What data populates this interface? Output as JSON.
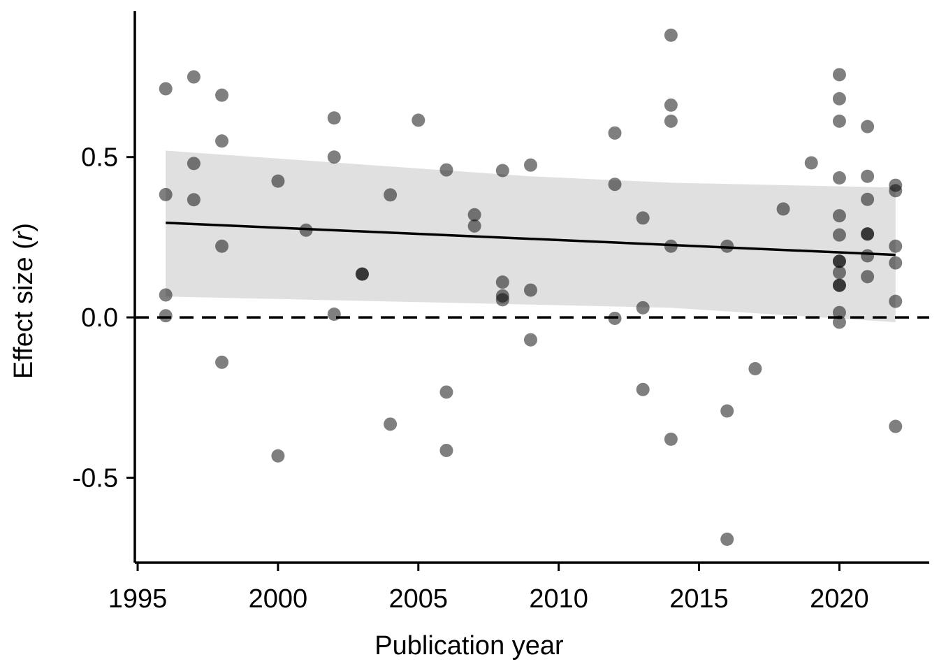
{
  "chart_data": {
    "type": "scatter",
    "title": "",
    "xlabel": "Publication year",
    "ylabel_prefix": "Effect size (",
    "ylabel_symbol": "r",
    "ylabel_suffix": ")",
    "xlim": [
      1994.9,
      2023.2
    ],
    "ylim": [
      -0.765,
      0.955
    ],
    "x_ticks": [
      1995,
      2000,
      2005,
      2010,
      2015,
      2020
    ],
    "x_tick_labels": [
      "1995",
      "2000",
      "2005",
      "2010",
      "2015",
      "2020"
    ],
    "y_ticks": [
      -0.5,
      0.0,
      0.5
    ],
    "y_tick_labels": [
      "-0.5",
      "0.0",
      "0.5"
    ],
    "reference_line_y": 0.0,
    "grid": false,
    "trend": {
      "x": [
        1996,
        2022
      ],
      "y": [
        0.295,
        0.195
      ]
    },
    "confidence_band": {
      "x": [
        1996,
        2009,
        2014,
        2022
      ],
      "upper": [
        0.52,
        0.44,
        0.42,
        0.405
      ],
      "lower": [
        0.065,
        0.04,
        0.03,
        -0.015
      ]
    },
    "points": [
      {
        "x": 1996,
        "y": 0.713
      },
      {
        "x": 1996,
        "y": 0.383
      },
      {
        "x": 1996,
        "y": 0.07
      },
      {
        "x": 1996,
        "y": 0.005
      },
      {
        "x": 1997,
        "y": 0.75
      },
      {
        "x": 1997,
        "y": 0.48
      },
      {
        "x": 1997,
        "y": 0.367
      },
      {
        "x": 1998,
        "y": 0.693
      },
      {
        "x": 1998,
        "y": 0.55
      },
      {
        "x": 1998,
        "y": 0.222
      },
      {
        "x": 1998,
        "y": -0.14
      },
      {
        "x": 2000,
        "y": 0.425
      },
      {
        "x": 2000,
        "y": -0.432
      },
      {
        "x": 2001,
        "y": 0.272
      },
      {
        "x": 2002,
        "y": 0.622
      },
      {
        "x": 2002,
        "y": 0.5
      },
      {
        "x": 2002,
        "y": 0.01
      },
      {
        "x": 2003,
        "y": 0.135
      },
      {
        "x": 2003,
        "y": 0.135
      },
      {
        "x": 2004,
        "y": 0.382
      },
      {
        "x": 2004,
        "y": -0.333
      },
      {
        "x": 2005,
        "y": 0.615
      },
      {
        "x": 2006,
        "y": 0.46
      },
      {
        "x": 2006,
        "y": -0.233
      },
      {
        "x": 2006,
        "y": -0.415
      },
      {
        "x": 2007,
        "y": 0.32
      },
      {
        "x": 2007,
        "y": 0.285
      },
      {
        "x": 2008,
        "y": 0.458
      },
      {
        "x": 2008,
        "y": 0.11
      },
      {
        "x": 2008,
        "y": 0.067
      },
      {
        "x": 2008,
        "y": 0.055
      },
      {
        "x": 2009,
        "y": 0.475
      },
      {
        "x": 2009,
        "y": 0.085
      },
      {
        "x": 2009,
        "y": -0.07
      },
      {
        "x": 2012,
        "y": 0.575
      },
      {
        "x": 2012,
        "y": 0.415
      },
      {
        "x": 2012,
        "y": -0.003
      },
      {
        "x": 2013,
        "y": 0.31
      },
      {
        "x": 2013,
        "y": 0.03
      },
      {
        "x": 2013,
        "y": -0.225
      },
      {
        "x": 2014,
        "y": 0.88
      },
      {
        "x": 2014,
        "y": 0.662
      },
      {
        "x": 2014,
        "y": 0.612
      },
      {
        "x": 2014,
        "y": 0.222
      },
      {
        "x": 2014,
        "y": -0.38
      },
      {
        "x": 2016,
        "y": 0.222
      },
      {
        "x": 2016,
        "y": -0.292
      },
      {
        "x": 2016,
        "y": -0.692
      },
      {
        "x": 2017,
        "y": -0.16
      },
      {
        "x": 2018,
        "y": 0.338
      },
      {
        "x": 2019,
        "y": 0.482
      },
      {
        "x": 2020,
        "y": 0.757
      },
      {
        "x": 2020,
        "y": 0.682
      },
      {
        "x": 2020,
        "y": 0.612
      },
      {
        "x": 2020,
        "y": 0.435
      },
      {
        "x": 2020,
        "y": 0.317
      },
      {
        "x": 2020,
        "y": 0.257
      },
      {
        "x": 2020,
        "y": 0.175
      },
      {
        "x": 2020,
        "y": 0.175
      },
      {
        "x": 2020,
        "y": 0.14
      },
      {
        "x": 2020,
        "y": 0.1
      },
      {
        "x": 2020,
        "y": 0.1
      },
      {
        "x": 2020,
        "y": 0.015
      },
      {
        "x": 2020,
        "y": -0.015
      },
      {
        "x": 2021,
        "y": 0.595
      },
      {
        "x": 2021,
        "y": 0.44
      },
      {
        "x": 2021,
        "y": 0.368
      },
      {
        "x": 2021,
        "y": 0.26
      },
      {
        "x": 2021,
        "y": 0.26
      },
      {
        "x": 2021,
        "y": 0.192
      },
      {
        "x": 2021,
        "y": 0.127
      },
      {
        "x": 2022,
        "y": 0.412
      },
      {
        "x": 2022,
        "y": 0.395
      },
      {
        "x": 2022,
        "y": 0.222
      },
      {
        "x": 2022,
        "y": 0.17
      },
      {
        "x": 2022,
        "y": 0.05
      },
      {
        "x": 2022,
        "y": -0.34
      }
    ]
  }
}
